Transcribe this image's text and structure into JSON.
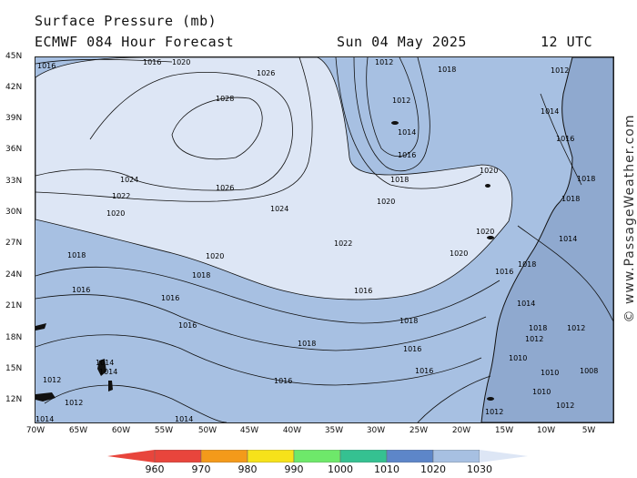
{
  "header": {
    "title": "Surface Pressure (mb)",
    "model": "ECMWF 084 Hour Forecast",
    "date": "Sun 04 May 2025",
    "time": "12 UTC"
  },
  "axes": {
    "lat_labels": [
      "45N",
      "42N",
      "39N",
      "36N",
      "33N",
      "30N",
      "27N",
      "24N",
      "21N",
      "18N",
      "15N",
      "12N"
    ],
    "lon_labels": [
      "70W",
      "65W",
      "60W",
      "55W",
      "50W",
      "45W",
      "40W",
      "35W",
      "30W",
      "25W",
      "20W",
      "15W",
      "10W",
      "5W"
    ]
  },
  "isobar_labels": [
    {
      "text": "1016"
    },
    {
      "text": "1016"
    },
    {
      "text": "1020"
    },
    {
      "text": "1026"
    },
    {
      "text": "1028"
    },
    {
      "text": "1024"
    },
    {
      "text": "1026"
    },
    {
      "text": "1022"
    },
    {
      "text": "1020"
    },
    {
      "text": "1024"
    },
    {
      "text": "1012"
    },
    {
      "text": "1012"
    },
    {
      "text": "1014"
    },
    {
      "text": "1016"
    },
    {
      "text": "1018"
    },
    {
      "text": "1018"
    },
    {
      "text": "1020"
    },
    {
      "text": "1020"
    },
    {
      "text": "1020"
    },
    {
      "text": "1022"
    },
    {
      "text": "1020"
    },
    {
      "text": "1020"
    },
    {
      "text": "1018"
    },
    {
      "text": "1018"
    },
    {
      "text": "1016"
    },
    {
      "text": "1016"
    },
    {
      "text": "1016"
    },
    {
      "text": "1016"
    },
    {
      "text": "1018"
    },
    {
      "text": "1018"
    },
    {
      "text": "1016"
    },
    {
      "text": "1016"
    },
    {
      "text": "1016"
    },
    {
      "text": "1014"
    },
    {
      "text": "1014"
    },
    {
      "text": "1012"
    },
    {
      "text": "1012"
    },
    {
      "text": "1014"
    },
    {
      "text": "1014"
    },
    {
      "text": "1018"
    },
    {
      "text": "1018"
    },
    {
      "text": "1014"
    },
    {
      "text": "1016"
    },
    {
      "text": "1014"
    },
    {
      "text": "1012"
    },
    {
      "text": "1010"
    },
    {
      "text": "1010"
    },
    {
      "text": "1008"
    },
    {
      "text": "1010"
    },
    {
      "text": "1012"
    },
    {
      "text": "1012"
    },
    {
      "text": "1012"
    },
    {
      "text": "1014"
    },
    {
      "text": "1016"
    },
    {
      "text": "1018"
    },
    {
      "text": "1018"
    },
    {
      "text": "1012"
    }
  ],
  "legend": {
    "levels": [
      "960",
      "970",
      "980",
      "990",
      "1000",
      "1010",
      "1020",
      "1030"
    ],
    "colors": [
      "#e8453c",
      "#f49a1a",
      "#f6e21a",
      "#6ee86a",
      "#35c191",
      "#5d86c9",
      "#a7c0e2",
      "#dde6f5"
    ]
  },
  "watermark": "© www.PassageWeather.com",
  "colors": {
    "ocean_1010_1020": "#a7c0e2",
    "high_1020_plus": "#dde6f5",
    "low_1000_1010": "#5d86c9",
    "land": "#8fa9cf"
  }
}
